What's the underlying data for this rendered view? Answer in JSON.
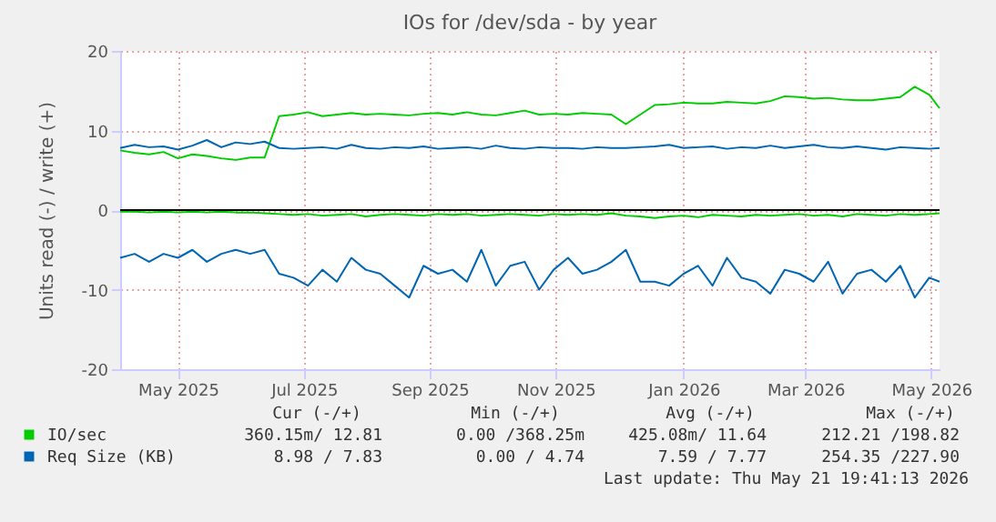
{
  "chart_data": {
    "type": "line",
    "title": "IOs for /dev/sda - by year",
    "ylabel": "Units read (-) / write (+)",
    "x": [
      "2025-04-18",
      "2025-04-25",
      "2025-05-02",
      "2025-05-09",
      "2025-05-16",
      "2025-05-23",
      "2025-05-30",
      "2025-06-06",
      "2025-06-13",
      "2025-06-20",
      "2025-06-27",
      "2025-07-04",
      "2025-07-11",
      "2025-07-18",
      "2025-07-25",
      "2025-08-01",
      "2025-08-08",
      "2025-08-15",
      "2025-08-22",
      "2025-08-29",
      "2025-09-05",
      "2025-09-12",
      "2025-09-19",
      "2025-09-26",
      "2025-10-03",
      "2025-10-10",
      "2025-10-17",
      "2025-10-24",
      "2025-10-31",
      "2025-11-07",
      "2025-11-14",
      "2025-11-21",
      "2025-11-28",
      "2025-12-05",
      "2025-12-12",
      "2025-12-19",
      "2025-12-26",
      "2026-01-02",
      "2026-01-09",
      "2026-01-16",
      "2026-01-23",
      "2026-01-30",
      "2026-02-06",
      "2026-02-13",
      "2026-02-20",
      "2026-02-27",
      "2026-03-06",
      "2026-03-13",
      "2026-03-20",
      "2026-03-27",
      "2026-04-03",
      "2026-04-10",
      "2026-04-17",
      "2026-04-24",
      "2026-05-01",
      "2026-05-08",
      "2026-05-15",
      "2026-05-20"
    ],
    "series": [
      {
        "name": "IO/sec",
        "color": "#00cc00",
        "values": [
          7.5,
          7.2,
          7.0,
          7.3,
          6.5,
          7.0,
          6.8,
          6.5,
          6.3,
          6.6,
          6.6,
          11.8,
          12.0,
          12.3,
          11.8,
          12.0,
          12.2,
          12.0,
          12.1,
          12.0,
          11.9,
          12.1,
          12.2,
          12.0,
          12.3,
          12.0,
          11.9,
          12.2,
          12.5,
          12.0,
          12.1,
          12.0,
          12.2,
          12.1,
          12.0,
          10.8,
          12.0,
          13.2,
          13.3,
          13.5,
          13.4,
          13.4,
          13.6,
          13.5,
          13.4,
          13.7,
          14.3,
          14.2,
          14.0,
          14.1,
          13.9,
          13.8,
          13.8,
          14.0,
          14.2,
          15.5,
          14.5,
          12.8
        ]
      },
      {
        "color": "#00cc00",
        "values": [
          -0.2,
          -0.2,
          -0.3,
          -0.2,
          -0.3,
          -0.2,
          -0.3,
          -0.2,
          -0.3,
          -0.3,
          -0.4,
          -0.5,
          -0.6,
          -0.5,
          -0.7,
          -0.6,
          -0.5,
          -0.8,
          -0.6,
          -0.5,
          -0.6,
          -0.7,
          -0.5,
          -0.6,
          -0.5,
          -0.7,
          -0.6,
          -0.5,
          -0.6,
          -0.7,
          -0.5,
          -0.6,
          -0.5,
          -0.6,
          -0.4,
          -0.7,
          -0.8,
          -1.0,
          -0.8,
          -0.7,
          -0.9,
          -0.6,
          -0.7,
          -0.8,
          -0.6,
          -0.7,
          -0.6,
          -0.5,
          -0.7,
          -0.6,
          -0.8,
          -0.5,
          -0.6,
          -0.7,
          -0.5,
          -0.6,
          -0.5,
          -0.4
        ]
      },
      {
        "name": "Req Size (KB)",
        "color": "#0066b3",
        "values": [
          7.8,
          8.2,
          7.9,
          8.0,
          7.6,
          8.1,
          8.8,
          7.9,
          8.5,
          8.3,
          8.6,
          7.8,
          7.7,
          7.8,
          7.9,
          7.7,
          8.2,
          7.8,
          7.7,
          7.9,
          7.8,
          8.0,
          7.7,
          7.8,
          7.9,
          7.7,
          8.1,
          7.8,
          7.7,
          7.9,
          7.8,
          7.8,
          7.7,
          7.9,
          7.8,
          7.8,
          7.9,
          8.0,
          8.2,
          7.8,
          7.9,
          8.0,
          7.7,
          7.9,
          7.8,
          8.1,
          7.8,
          8.0,
          8.2,
          7.9,
          7.8,
          8.0,
          7.8,
          7.6,
          7.9,
          7.8,
          7.7,
          7.8
        ]
      },
      {
        "color": "#0066b3",
        "values": [
          -6.0,
          -5.5,
          -6.5,
          -5.5,
          -6.0,
          -5.0,
          -6.5,
          -5.5,
          -5.0,
          -5.5,
          -5.0,
          -8.0,
          -8.5,
          -9.5,
          -7.5,
          -9.0,
          -6.0,
          -7.5,
          -8.0,
          -9.5,
          -11.0,
          -7.0,
          -8.0,
          -7.5,
          -9.0,
          -5.0,
          -9.5,
          -7.0,
          -6.5,
          -10.0,
          -7.5,
          -6.0,
          -8.0,
          -7.5,
          -6.5,
          -5.0,
          -9.0,
          -9.0,
          -9.5,
          -8.0,
          -7.0,
          -9.5,
          -6.0,
          -8.5,
          -9.0,
          -10.5,
          -7.5,
          -8.0,
          -9.0,
          -6.5,
          -10.5,
          -8.0,
          -7.5,
          -9.0,
          -7.0,
          -11.0,
          -8.5,
          -9.0
        ]
      }
    ],
    "xlim": [
      "2025-04-18",
      "2026-05-20"
    ],
    "xticks": [
      {
        "value": "2025-05-16",
        "label": "May 2025"
      },
      {
        "value": "2025-07-16",
        "label": "Jul 2025"
      },
      {
        "value": "2025-09-15",
        "label": "Sep 2025"
      },
      {
        "value": "2025-11-15",
        "label": "Nov 2025"
      },
      {
        "value": "2026-01-16",
        "label": "Jan 2026"
      },
      {
        "value": "2026-03-16",
        "label": "Mar 2026"
      },
      {
        "value": "2026-05-16",
        "label": "May 2026"
      }
    ],
    "ylim": [
      -20,
      20
    ],
    "yticks": [
      -20,
      -10,
      0,
      10,
      20
    ],
    "ref_lines": [
      {
        "axis": "y",
        "value": 0,
        "color": "#000000"
      }
    ],
    "grid": true,
    "legend": "bottom",
    "line_style": "solid",
    "marker": "none",
    "annotations": [
      "Cur (-/+)",
      "Min (-/+)",
      "Avg (-/+)",
      "Max (-/+)",
      "360.15m/ 12.81",
      "0.00 /368.25m",
      "425.08m/ 11.64",
      "212.21 /198.82",
      "8.98 /  7.83",
      "0.00 /  4.74",
      "7.59 /  7.77",
      "254.35 /227.90",
      "Last update: Thu May 21 19:41:13 2026"
    ]
  }
}
